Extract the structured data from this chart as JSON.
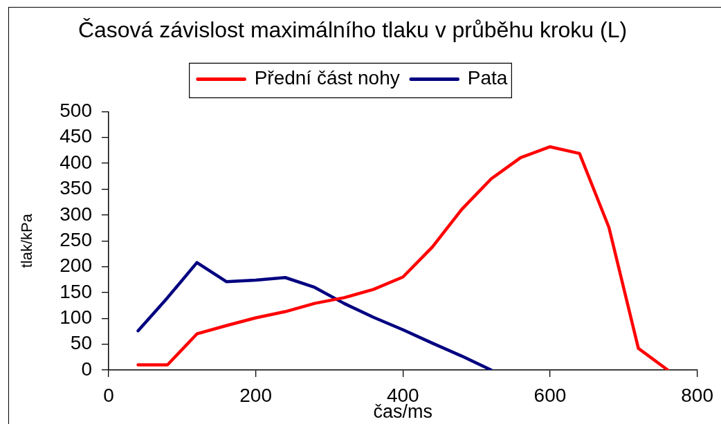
{
  "chart_data": {
    "type": "line",
    "title": "Časová závislost maximálního tlaku v průběhu kroku (L)",
    "xlabel": "čas/ms",
    "ylabel": "tlak/kPa",
    "x": [
      40,
      80,
      120,
      160,
      200,
      240,
      280,
      320,
      360,
      400,
      440,
      480,
      520,
      560,
      600,
      640,
      680,
      720,
      760
    ],
    "series": [
      {
        "name": "Přední část nohy",
        "color": "#ff0000",
        "values": [
          10,
          10,
          70,
          86,
          101,
          113,
          129,
          140,
          156,
          180,
          238,
          311,
          370,
          411,
          432,
          419,
          276,
          42,
          0
        ]
      },
      {
        "name": "Pata",
        "color": "#000080",
        "x": [
          40,
          80,
          120,
          160,
          200,
          240,
          280,
          320,
          360,
          400,
          440,
          480,
          520
        ],
        "values": [
          76,
          140,
          208,
          171,
          174,
          179,
          160,
          129,
          102,
          78,
          52,
          27,
          0
        ]
      }
    ],
    "xlim": [
      0,
      800
    ],
    "xticks": [
      0,
      200,
      400,
      600,
      800
    ],
    "ylim": [
      0,
      500
    ],
    "yticks": [
      0,
      50,
      100,
      150,
      200,
      250,
      300,
      350,
      400,
      450,
      500
    ],
    "grid": false,
    "legend": "top",
    "marker": "none",
    "line_style": "solid"
  }
}
